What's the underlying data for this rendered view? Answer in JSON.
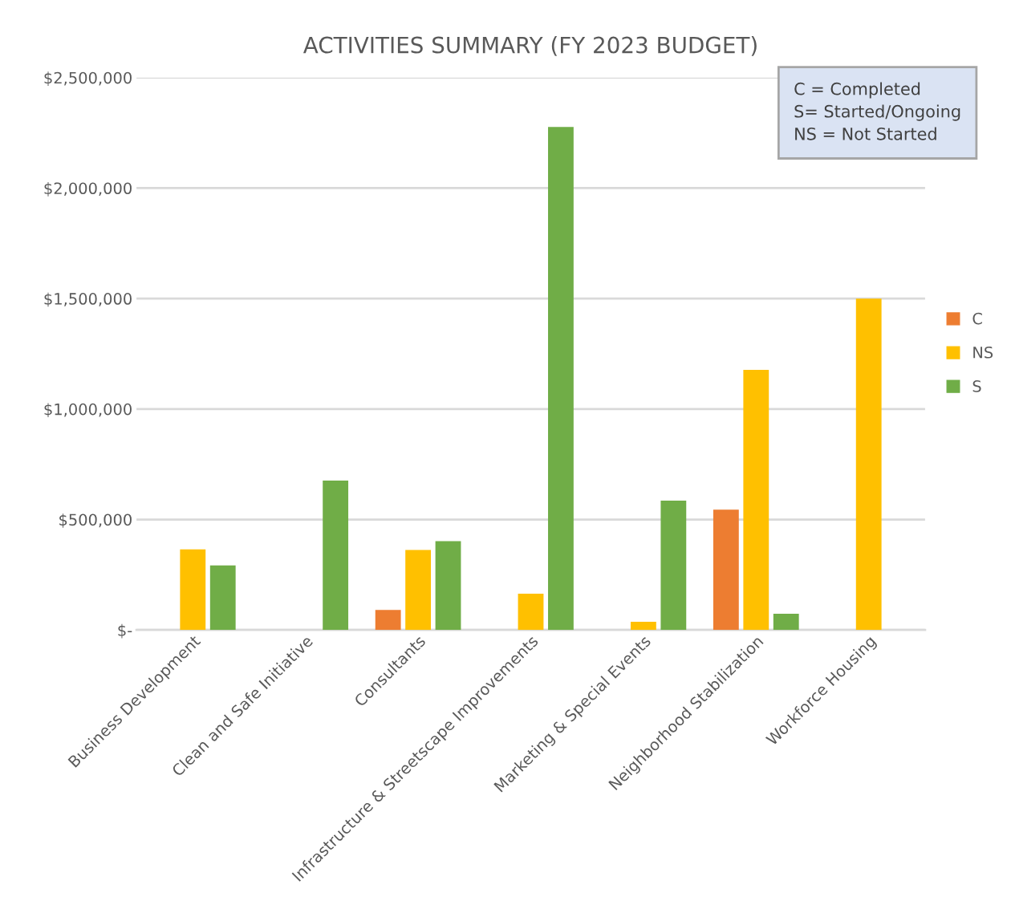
{
  "chart_data": {
    "type": "bar",
    "title": "ACTIVITIES SUMMARY (FY 2023 BUDGET)",
    "categories": [
      "Business Development",
      "Clean and Safe Initiative",
      "Consultants",
      "Infrastructure & Streetscape Improvements",
      "Marketing & Special Events",
      "Neighborhood Stabilization",
      "Workforce Housing"
    ],
    "series": [
      {
        "name": "C",
        "color": "#ed7d31",
        "values": [
          null,
          null,
          91000,
          null,
          null,
          545000,
          null
        ]
      },
      {
        "name": "NS",
        "color": "#ffc000",
        "values": [
          365000,
          null,
          362000,
          164000,
          37000,
          1177000,
          1500000
        ]
      },
      {
        "name": "S",
        "color": "#70ad47",
        "values": [
          292000,
          676000,
          402000,
          2277000,
          585000,
          73000,
          null
        ]
      }
    ],
    "ylim": [
      0,
      2500000
    ],
    "yticks": [
      {
        "value": 0,
        "label": "$-"
      },
      {
        "value": 500000,
        "label": "$500,000"
      },
      {
        "value": 1000000,
        "label": "$1,000,000"
      },
      {
        "value": 1500000,
        "label": "$1,500,000"
      },
      {
        "value": 2000000,
        "label": "$2,000,000"
      },
      {
        "value": 2500000,
        "label": "$2,500,000"
      }
    ],
    "grid": "y",
    "legend": "right",
    "annotations": [
      "C = Completed\nS= Started/Ongoing\nNS = Not Started"
    ]
  }
}
